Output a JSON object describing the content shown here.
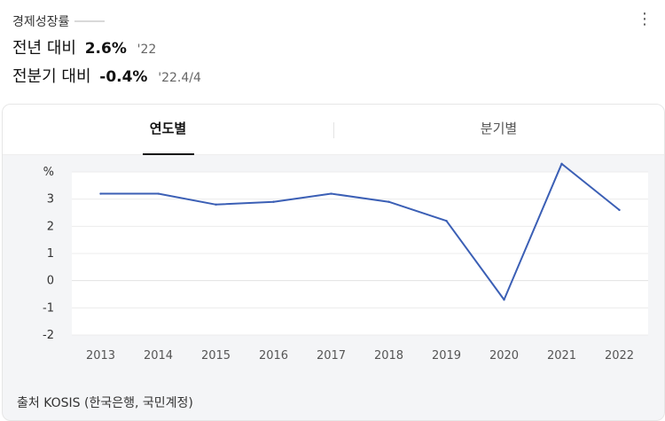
{
  "header": {
    "title": "경제성장률",
    "menu_icon": "more-vertical-icon",
    "yoy": {
      "label": "전년 대비",
      "value": "2.6%",
      "period": "'22"
    },
    "qoq": {
      "label": "전분기 대비",
      "value": "-0.4%",
      "period": "'22.4/4"
    }
  },
  "tabs": [
    {
      "label": "연도별",
      "active": true
    },
    {
      "label": "분기별",
      "active": false
    }
  ],
  "chart_data": {
    "type": "line",
    "ylabel": "%",
    "ylim": [
      -2,
      4
    ],
    "yticks": [
      -2,
      -1,
      0,
      1,
      2,
      3
    ],
    "x": [
      "2013",
      "2014",
      "2015",
      "2016",
      "2017",
      "2018",
      "2019",
      "2020",
      "2021",
      "2022"
    ],
    "values": [
      3.2,
      3.2,
      2.8,
      2.9,
      3.2,
      2.9,
      2.2,
      -0.7,
      4.3,
      2.6
    ],
    "line_color": "#3b5fb5",
    "grid": true
  },
  "source": "출처 KOSIS (한국은행, 국민계정)"
}
